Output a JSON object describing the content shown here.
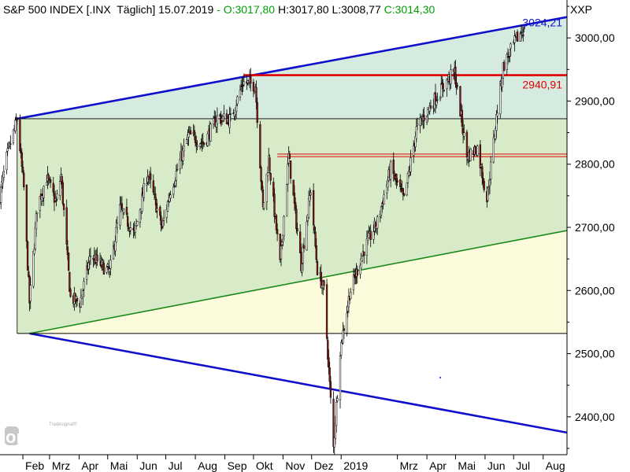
{
  "header": {
    "symbol": "S&P 500 INDEX [.INX",
    "period": "Täglich]",
    "date": "15.07.2019",
    "sep": " - ",
    "open": "O:3017,80",
    "high": "H:3017,80",
    "low": "L:3008,77",
    "close": "C:3014,30",
    "axis_symbol": "XXP"
  },
  "watermark": {
    "brand": "online",
    "sub": "Tradesignal®"
  },
  "colors": {
    "up": "#ffffff",
    "down": "#8b1a1a",
    "channel_blue": "#1010cc",
    "resistance_red": "#e00000",
    "trend_green": "#1a8a1a",
    "zone_green": "#d8ebc8",
    "zone_yellow": "#fcfcdc",
    "zone_teal": "#d6ebe0",
    "label_blue": "#1010cc",
    "label_red": "#e00000"
  },
  "chart_data": {
    "type": "candlestick",
    "title": "S&P 500 INDEX",
    "ylim": [
      2340,
      3060
    ],
    "y_ticks": [
      "2400,00",
      "2500,00",
      "2600,00",
      "2700,00",
      "2800,00",
      "2900,00",
      "3000,00"
    ],
    "y_tick_values": [
      2400,
      2500,
      2600,
      2700,
      2800,
      2900,
      3000
    ],
    "x_ticks": [
      "Feb",
      "Mrz",
      "Apr",
      "Mai",
      "Jun",
      "Jul",
      "Aug",
      "Sep",
      "Okt",
      "Nov",
      "Dez",
      "2019",
      "Mrz",
      "Apr",
      "Mai",
      "Jun",
      "Jul",
      "Aug"
    ],
    "x_tick_dates": [
      "2018-02-01",
      "2018-03-01",
      "2018-04-01",
      "2018-05-01",
      "2018-06-01",
      "2018-07-01",
      "2018-08-01",
      "2018-09-01",
      "2018-10-01",
      "2018-11-01",
      "2018-12-01",
      "2019-01-01",
      "2019-03-01",
      "2019-04-01",
      "2019-05-01",
      "2019-06-01",
      "2019-07-01",
      "2019-08-01"
    ],
    "x_range": [
      "2018-01-08",
      "2019-08-26"
    ],
    "price_labels": [
      {
        "text": "3024,21",
        "value": 3024.21,
        "color": "label_blue"
      },
      {
        "text": "2940,91",
        "value": 2940.91,
        "color": "label_red"
      }
    ],
    "lines": [
      {
        "name": "upper-channel",
        "color": "channel_blue",
        "from": [
          "2018-01-26",
          2872
        ],
        "to": [
          "2019-08-26",
          3033
        ]
      },
      {
        "name": "lower-channel",
        "color": "channel_blue",
        "from": [
          "2018-02-08",
          2532
        ],
        "to": [
          "2019-08-26",
          2375
        ]
      },
      {
        "name": "uptrend-support",
        "color": "trend_green",
        "from": [
          "2018-02-08",
          2532
        ],
        "to": [
          "2019-08-26",
          2695
        ]
      },
      {
        "name": "resistance",
        "color": "resistance_red",
        "from": [
          "2018-09-21",
          2940.91
        ],
        "to": [
          "2019-08-26",
          2940.91
        ]
      },
      {
        "name": "resistance-2a",
        "color": "resistance_red",
        "from": [
          "2018-10-26",
          2816
        ],
        "to": [
          "2019-08-26",
          2816
        ]
      },
      {
        "name": "resistance-2b",
        "color": "resistance_red",
        "from": [
          "2018-10-26",
          2812
        ],
        "to": [
          "2019-08-26",
          2812
        ]
      },
      {
        "name": "range-top",
        "color": "black",
        "from": [
          "2018-01-26",
          2872
        ],
        "to": [
          "2019-08-26",
          2872
        ]
      },
      {
        "name": "range-bottom",
        "color": "black",
        "from": [
          "2018-01-26",
          2532
        ],
        "to": [
          "2019-08-26",
          2532
        ]
      }
    ],
    "closes": [
      [
        "2018-01-08",
        2750
      ],
      [
        "2018-01-15",
        2810
      ],
      [
        "2018-01-26",
        2872
      ],
      [
        "2018-02-02",
        2762
      ],
      [
        "2018-02-08",
        2581
      ],
      [
        "2018-02-16",
        2732
      ],
      [
        "2018-02-26",
        2779
      ],
      [
        "2018-03-08",
        2738
      ],
      [
        "2018-03-13",
        2783
      ],
      [
        "2018-03-23",
        2588
      ],
      [
        "2018-04-02",
        2581
      ],
      [
        "2018-04-13",
        2656
      ],
      [
        "2018-04-25",
        2639
      ],
      [
        "2018-05-03",
        2629
      ],
      [
        "2018-05-14",
        2730
      ],
      [
        "2018-05-29",
        2689
      ],
      [
        "2018-06-12",
        2786
      ],
      [
        "2018-06-27",
        2699
      ],
      [
        "2018-07-06",
        2759
      ],
      [
        "2018-07-25",
        2846
      ],
      [
        "2018-08-10",
        2833
      ],
      [
        "2018-08-24",
        2874
      ],
      [
        "2018-09-07",
        2871
      ],
      [
        "2018-09-20",
        2930
      ],
      [
        "2018-10-03",
        2925
      ],
      [
        "2018-10-11",
        2728
      ],
      [
        "2018-10-17",
        2809
      ],
      [
        "2018-10-29",
        2641
      ],
      [
        "2018-11-07",
        2813
      ],
      [
        "2018-11-20",
        2641
      ],
      [
        "2018-11-30",
        2760
      ],
      [
        "2018-12-07",
        2633
      ],
      [
        "2018-12-14",
        2600
      ],
      [
        "2018-12-24",
        2351
      ],
      [
        "2018-12-31",
        2507
      ],
      [
        "2019-01-10",
        2596
      ],
      [
        "2019-01-25",
        2665
      ],
      [
        "2019-02-08",
        2708
      ],
      [
        "2019-02-22",
        2793
      ],
      [
        "2019-03-08",
        2743
      ],
      [
        "2019-03-21",
        2855
      ],
      [
        "2019-04-05",
        2893
      ],
      [
        "2019-04-23",
        2934
      ],
      [
        "2019-04-30",
        2946
      ],
      [
        "2019-05-13",
        2812
      ],
      [
        "2019-05-24",
        2826
      ],
      [
        "2019-06-03",
        2744
      ],
      [
        "2019-06-14",
        2887
      ],
      [
        "2019-06-20",
        2954
      ],
      [
        "2019-07-03",
        2996
      ],
      [
        "2019-07-12",
        3014
      ]
    ]
  }
}
